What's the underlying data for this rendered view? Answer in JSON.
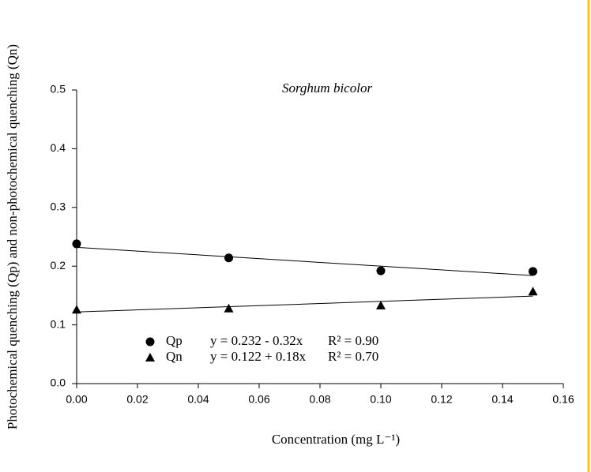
{
  "chart_data": {
    "type": "scatter",
    "title": "Sorghum bicolor",
    "x_label": "Concentration (mg L⁻¹)",
    "y_label": "Photochemical quenching (Qp) and non-photochemical quenching (Qn)",
    "x": [
      0.0,
      0.05,
      0.1,
      0.15
    ],
    "series": [
      {
        "name": "Qp",
        "marker": "circle",
        "color": "#000000",
        "values": [
          0.238,
          0.214,
          0.192,
          0.191
        ],
        "fit_label": "y = 0.232 - 0.32x",
        "r2_label": "R² = 0.90",
        "fit": {
          "x": [
            0.0,
            0.15
          ],
          "values": [
            0.232,
            0.184
          ]
        }
      },
      {
        "name": "Qn",
        "marker": "triangle",
        "color": "#000000",
        "values": [
          0.126,
          0.128,
          0.133,
          0.157
        ],
        "fit_label": "y = 0.122 + 0.18x",
        "r2_label": "R² = 0.70",
        "fit": {
          "x": [
            0.0,
            0.15
          ],
          "values": [
            0.122,
            0.149
          ]
        }
      }
    ],
    "xlim": [
      0,
      0.16
    ],
    "ylim": [
      0,
      0.5
    ],
    "xticks": [
      {
        "value": 0,
        "label": "0.00"
      },
      {
        "value": 0.02,
        "label": "0.02"
      },
      {
        "value": 0.04,
        "label": "0.04"
      },
      {
        "value": 0.06,
        "label": "0.06"
      },
      {
        "value": 0.08,
        "label": "0.08"
      },
      {
        "value": 0.1,
        "label": "0.10"
      },
      {
        "value": 0.12,
        "label": "0.12"
      },
      {
        "value": 0.14,
        "label": "0.14"
      },
      {
        "value": 0.16,
        "label": "0.16"
      }
    ],
    "yticks": [
      {
        "value": 0,
        "label": "0.0"
      },
      {
        "value": 0.1,
        "label": "0.1"
      },
      {
        "value": 0.2,
        "label": "0.2"
      },
      {
        "value": 0.3,
        "label": "0.3"
      },
      {
        "value": 0.4,
        "label": "0.4"
      },
      {
        "value": 0.5,
        "label": "0.5"
      }
    ],
    "grid": false
  }
}
